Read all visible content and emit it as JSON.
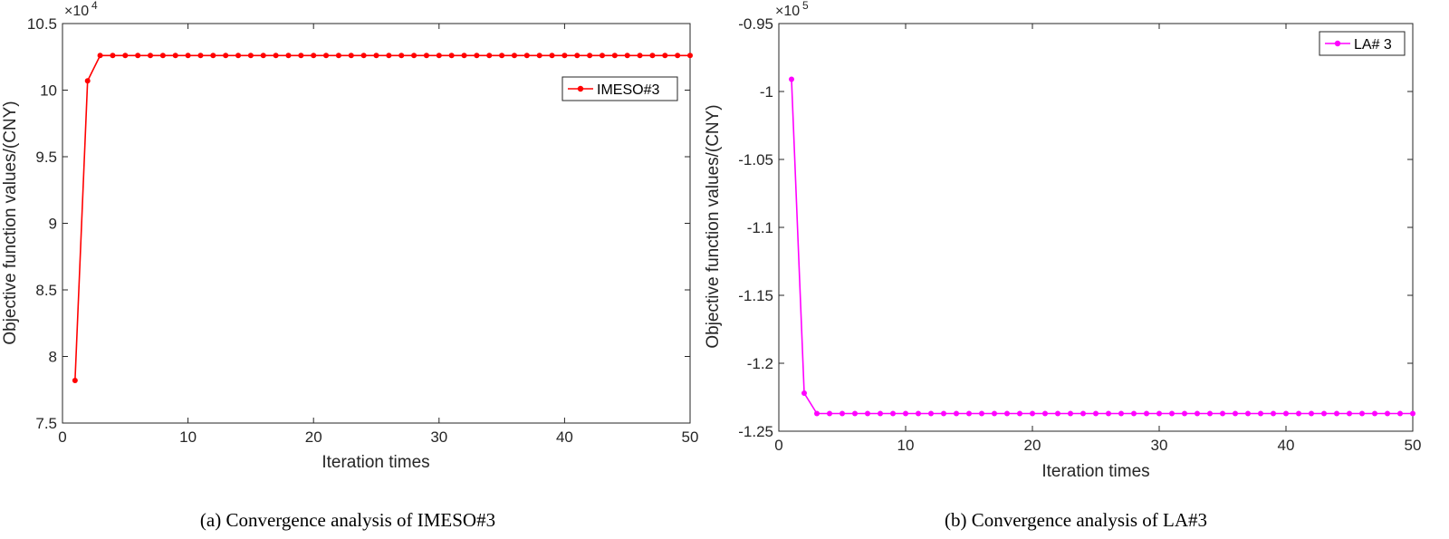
{
  "chart_data": [
    {
      "type": "line",
      "caption": "(a) Convergence analysis of IMESO#3",
      "xlabel": "Iteration times",
      "ylabel": "Objective function values/(CNY)",
      "exponent_base": "×10",
      "exponent_power": "4",
      "xlim": [
        0,
        50
      ],
      "ylim": [
        7.5,
        10.5
      ],
      "xticks": [
        0,
        10,
        20,
        30,
        40,
        50
      ],
      "xtick_labels": [
        "0",
        "10",
        "20",
        "30",
        "40",
        "50"
      ],
      "yticks": [
        7.5,
        8,
        8.5,
        9,
        9.5,
        10,
        10.5
      ],
      "ytick_labels": [
        "7.5",
        "8",
        "8.5",
        "9",
        "9.5",
        "10",
        "10.5"
      ],
      "legend_position": "top-right",
      "series": [
        {
          "name": "IMESO#3",
          "color": "#ff0000",
          "x": [
            1,
            2,
            3,
            4,
            5,
            6,
            7,
            8,
            9,
            10,
            11,
            12,
            13,
            14,
            15,
            16,
            17,
            18,
            19,
            20,
            21,
            22,
            23,
            24,
            25,
            26,
            27,
            28,
            29,
            30,
            31,
            32,
            33,
            34,
            35,
            36,
            37,
            38,
            39,
            40,
            41,
            42,
            43,
            44,
            45,
            46,
            47,
            48,
            49,
            50
          ],
          "y": [
            7.82,
            10.07,
            10.26,
            10.26,
            10.26,
            10.26,
            10.26,
            10.26,
            10.26,
            10.26,
            10.26,
            10.26,
            10.26,
            10.26,
            10.26,
            10.26,
            10.26,
            10.26,
            10.26,
            10.26,
            10.26,
            10.26,
            10.26,
            10.26,
            10.26,
            10.26,
            10.26,
            10.26,
            10.26,
            10.26,
            10.26,
            10.26,
            10.26,
            10.26,
            10.26,
            10.26,
            10.26,
            10.26,
            10.26,
            10.26,
            10.26,
            10.26,
            10.26,
            10.26,
            10.26,
            10.26,
            10.26,
            10.26,
            10.26,
            10.26
          ]
        }
      ]
    },
    {
      "type": "line",
      "caption": "(b) Convergence analysis of LA#3",
      "xlabel": "Iteration times",
      "ylabel": "Objective function values/(CNY)",
      "exponent_base": "×10",
      "exponent_power": "5",
      "xlim": [
        0,
        50
      ],
      "ylim": [
        -1.25,
        -0.95
      ],
      "xticks": [
        0,
        10,
        20,
        30,
        40,
        50
      ],
      "xtick_labels": [
        "0",
        "10",
        "20",
        "30",
        "40",
        "50"
      ],
      "yticks": [
        -1.25,
        -1.2,
        -1.15,
        -1.1,
        -1.05,
        -1,
        -0.95
      ],
      "ytick_labels": [
        "-1.25",
        "-1.2",
        "-1.15",
        "-1.1",
        "-1.05",
        "-1",
        "-0.95"
      ],
      "legend_position": "top-right",
      "series": [
        {
          "name": "LA# 3",
          "color": "#ff00ff",
          "x": [
            1,
            2,
            3,
            4,
            5,
            6,
            7,
            8,
            9,
            10,
            11,
            12,
            13,
            14,
            15,
            16,
            17,
            18,
            19,
            20,
            21,
            22,
            23,
            24,
            25,
            26,
            27,
            28,
            29,
            30,
            31,
            32,
            33,
            34,
            35,
            36,
            37,
            38,
            39,
            40,
            41,
            42,
            43,
            44,
            45,
            46,
            47,
            48,
            49,
            50
          ],
          "y": [
            -0.991,
            -1.222,
            -1.237,
            -1.237,
            -1.237,
            -1.237,
            -1.237,
            -1.237,
            -1.237,
            -1.237,
            -1.237,
            -1.237,
            -1.237,
            -1.237,
            -1.237,
            -1.237,
            -1.237,
            -1.237,
            -1.237,
            -1.237,
            -1.237,
            -1.237,
            -1.237,
            -1.237,
            -1.237,
            -1.237,
            -1.237,
            -1.237,
            -1.237,
            -1.237,
            -1.237,
            -1.237,
            -1.237,
            -1.237,
            -1.237,
            -1.237,
            -1.237,
            -1.237,
            -1.237,
            -1.237,
            -1.237,
            -1.237,
            -1.237,
            -1.237,
            -1.237,
            -1.237,
            -1.237,
            -1.237,
            -1.237,
            -1.237
          ]
        }
      ]
    }
  ]
}
